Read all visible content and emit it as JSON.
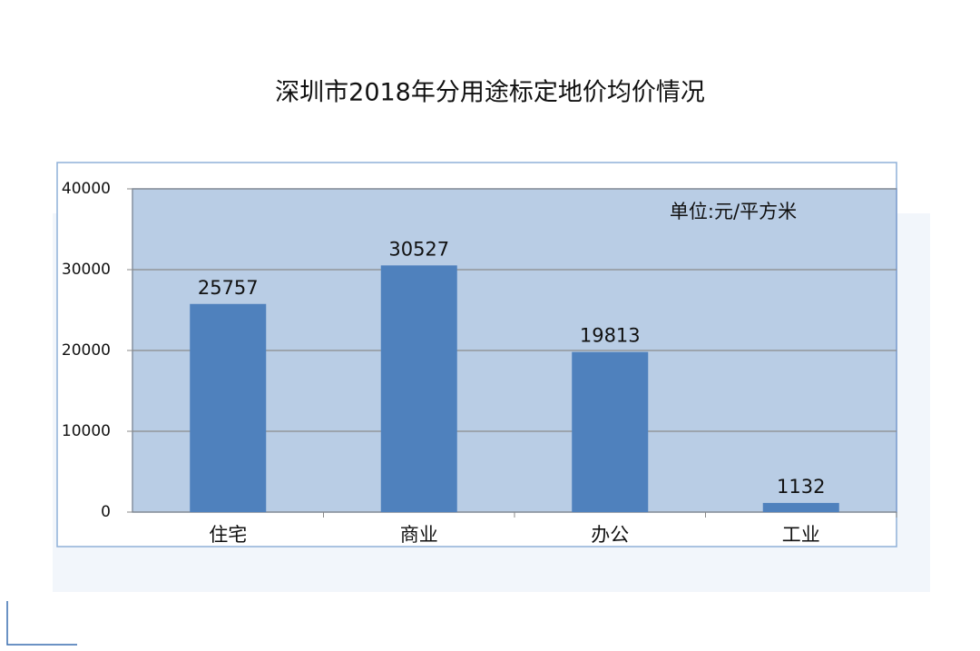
{
  "chart_data": {
    "type": "bar",
    "title": "深圳市2018年分用途标定地价均价情况",
    "annotation": "单位:元/平方米",
    "categories": [
      "住宅",
      "商业",
      "办公",
      "工业"
    ],
    "values": [
      25757,
      30527,
      19813,
      1132
    ],
    "color": "#4f81bd",
    "plot_background": "#b9cde5",
    "ylim": [
      0,
      40000
    ],
    "yticks": [
      0,
      10000,
      20000,
      30000,
      40000
    ],
    "grid": true
  }
}
